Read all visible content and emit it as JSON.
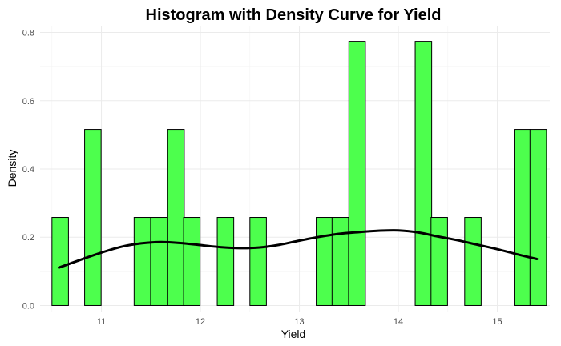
{
  "chart_data": {
    "type": "bar",
    "title": "Histogram with Density Curve for Yield",
    "xlabel": "Yield",
    "ylabel": "Density",
    "xlim": [
      10.38,
      15.53
    ],
    "ylim": [
      -0.02,
      0.82
    ],
    "x_ticks": [
      11,
      12,
      13,
      14,
      15
    ],
    "x_tick_labels": [
      "11",
      "12",
      "13",
      "14",
      "15"
    ],
    "y_ticks": [
      0,
      0.2,
      0.4,
      0.6,
      0.8
    ],
    "y_tick_labels": [
      "0.0",
      "0.2",
      "0.4",
      "0.6",
      "0.8"
    ],
    "bin_width": 0.1667,
    "bins": [
      {
        "x0": 10.5,
        "density": 0.258
      },
      {
        "x0": 10.67,
        "density": 0.0
      },
      {
        "x0": 10.83,
        "density": 0.516
      },
      {
        "x0": 11.0,
        "density": 0.0
      },
      {
        "x0": 11.17,
        "density": 0.0
      },
      {
        "x0": 11.33,
        "density": 0.258
      },
      {
        "x0": 11.5,
        "density": 0.258
      },
      {
        "x0": 11.67,
        "density": 0.516
      },
      {
        "x0": 11.83,
        "density": 0.258
      },
      {
        "x0": 12.0,
        "density": 0.0
      },
      {
        "x0": 12.17,
        "density": 0.258
      },
      {
        "x0": 12.33,
        "density": 0.0
      },
      {
        "x0": 12.5,
        "density": 0.258
      },
      {
        "x0": 12.67,
        "density": 0.0
      },
      {
        "x0": 12.83,
        "density": 0.0
      },
      {
        "x0": 13.0,
        "density": 0.0
      },
      {
        "x0": 13.17,
        "density": 0.258
      },
      {
        "x0": 13.33,
        "density": 0.258
      },
      {
        "x0": 13.5,
        "density": 0.774
      },
      {
        "x0": 13.67,
        "density": 0.0
      },
      {
        "x0": 13.83,
        "density": 0.0
      },
      {
        "x0": 14.0,
        "density": 0.0
      },
      {
        "x0": 14.17,
        "density": 0.774
      },
      {
        "x0": 14.33,
        "density": 0.258
      },
      {
        "x0": 14.5,
        "density": 0.0
      },
      {
        "x0": 14.67,
        "density": 0.258
      },
      {
        "x0": 14.83,
        "density": 0.0
      },
      {
        "x0": 15.0,
        "density": 0.0
      },
      {
        "x0": 15.17,
        "density": 0.516
      },
      {
        "x0": 15.33,
        "density": 0.516
      }
    ],
    "density_curve": {
      "x": [
        10.57,
        10.8,
        11.0,
        11.2,
        11.4,
        11.6,
        11.8,
        12.0,
        12.2,
        12.4,
        12.6,
        12.8,
        13.0,
        13.2,
        13.4,
        13.6,
        13.8,
        14.0,
        14.2,
        14.4,
        14.6,
        14.8,
        15.0,
        15.2,
        15.4
      ],
      "y": [
        0.111,
        0.135,
        0.155,
        0.172,
        0.182,
        0.186,
        0.183,
        0.177,
        0.171,
        0.168,
        0.17,
        0.178,
        0.19,
        0.201,
        0.21,
        0.215,
        0.219,
        0.22,
        0.214,
        0.202,
        0.191,
        0.178,
        0.165,
        0.15,
        0.136
      ]
    },
    "grid": true,
    "legend": "none",
    "bar_fill": "#4dff4d",
    "bar_stroke": "#000000",
    "curve_color": "#000000"
  }
}
